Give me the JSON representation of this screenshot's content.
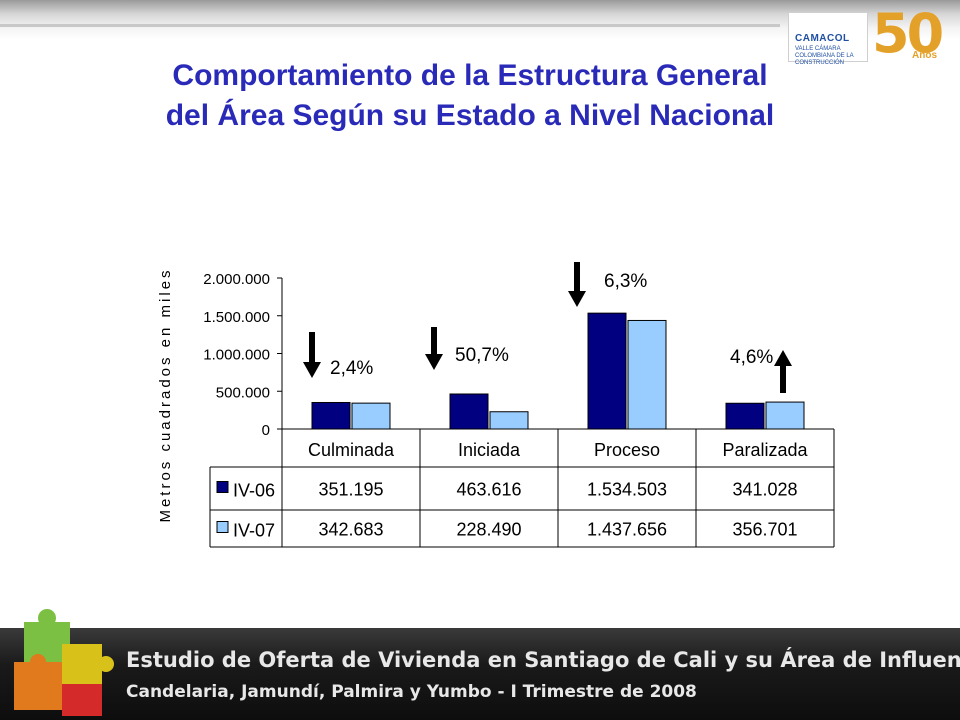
{
  "page": {
    "title_line1": "Comportamiento de la Estructura General",
    "title_line2": "del Área Según su Estado a Nivel Nacional",
    "logo_brand": "CAMACOL",
    "logo_sub": "VALLE CÁMARA COLOMBIANA DE LA CONSTRUCCIÓN",
    "logo_number": "50",
    "logo_years": "Años",
    "footer_line1": "Estudio de Oferta de Vivienda en Santiago de Cali y su Área de Influencia",
    "footer_line2": "Candelaria, Jamundí, Palmira y Yumbo - I Trimestre de 2008",
    "colors": {
      "title": "#2a2ab8",
      "series_iv06": "#000080",
      "series_iv07": "#99ccff",
      "footer_bg": "#1a1a1a"
    }
  },
  "chart_data": {
    "type": "bar",
    "ylabel": "Metros cuadrados en miles",
    "ylim": [
      0,
      2000000
    ],
    "yticks": [
      "2.000.000",
      "1.500.000",
      "1.000.000",
      "500.000",
      "0"
    ],
    "categories": [
      "Culminada",
      "Iniciada",
      "Proceso",
      "Paralizada"
    ],
    "series": [
      {
        "name": "IV-06",
        "values": [
          351195,
          463616,
          1534503,
          341028
        ],
        "labels": [
          "351.195",
          "463.616",
          "1.534.503",
          "341.028"
        ]
      },
      {
        "name": "IV-07",
        "values": [
          342683,
          228490,
          1437656,
          356701
        ],
        "labels": [
          "342.683",
          "228.490",
          "1.437.656",
          "356.701"
        ]
      }
    ],
    "annotations": [
      {
        "category": "Culminada",
        "text": "2,4%",
        "arrow": "down"
      },
      {
        "category": "Iniciada",
        "text": "50,7%",
        "arrow": "down"
      },
      {
        "category": "Proceso",
        "text": "6,3%",
        "arrow": "down"
      },
      {
        "category": "Paralizada",
        "text": "4,6%",
        "arrow": "up"
      }
    ],
    "legend": "table-bottom"
  }
}
